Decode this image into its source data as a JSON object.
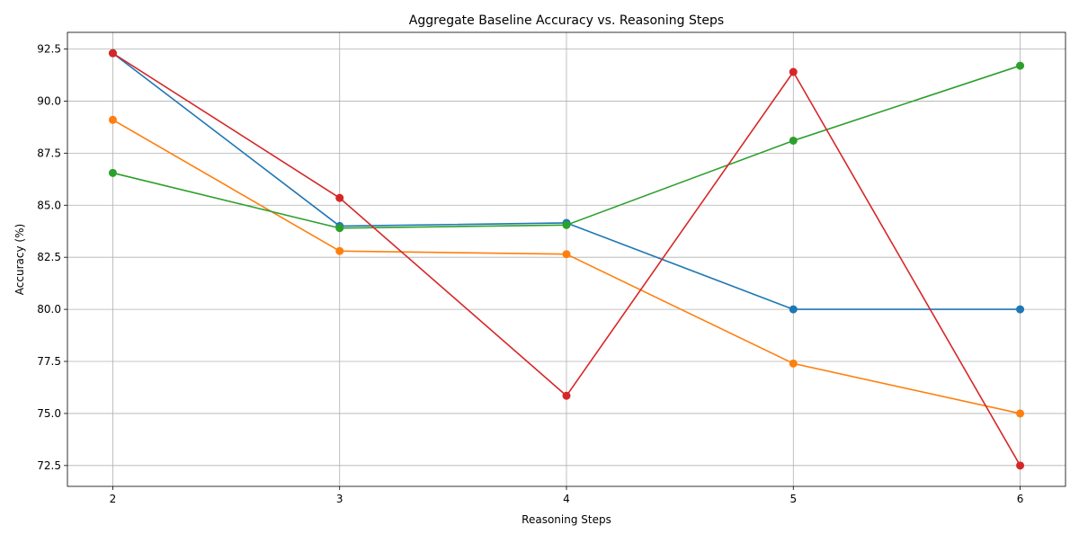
{
  "chart_data": {
    "type": "line",
    "title": "Aggregate Baseline Accuracy vs. Reasoning Steps",
    "xlabel": "Reasoning Steps",
    "ylabel": "Accuracy (%)",
    "x": [
      2,
      3,
      4,
      5,
      6
    ],
    "x_ticks": [
      "2",
      "3",
      "4",
      "5",
      "6"
    ],
    "y_ticks": [
      "72.5",
      "75.0",
      "77.5",
      "80.0",
      "82.5",
      "85.0",
      "87.5",
      "90.0",
      "92.5"
    ],
    "y_tick_values": [
      72.5,
      75.0,
      77.5,
      80.0,
      82.5,
      85.0,
      87.5,
      90.0,
      92.5
    ],
    "xlim": [
      1.8,
      6.2
    ],
    "ylim": [
      71.5,
      93.3
    ],
    "grid": true,
    "marker": "circle",
    "series": [
      {
        "color": "#1f77b4",
        "values": [
          92.3,
          84.0,
          84.15,
          80.0,
          80.0
        ]
      },
      {
        "color": "#ff7f0e",
        "values": [
          89.1,
          82.8,
          82.65,
          77.4,
          75.0
        ]
      },
      {
        "color": "#2ca02c",
        "values": [
          86.55,
          83.9,
          84.05,
          88.1,
          91.7
        ]
      },
      {
        "color": "#d62728",
        "values": [
          92.3,
          85.35,
          75.85,
          91.4,
          72.5
        ]
      }
    ]
  }
}
